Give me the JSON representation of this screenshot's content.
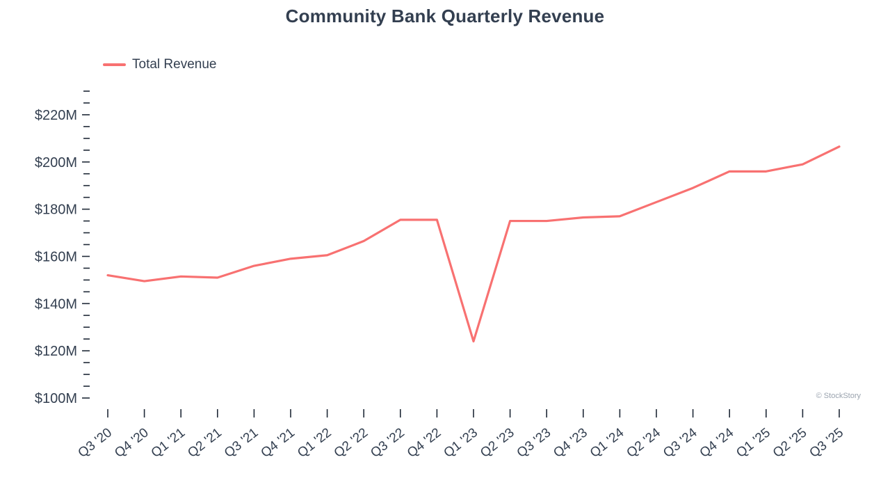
{
  "title": "Community Bank Quarterly Revenue",
  "legend": {
    "label": "Total Revenue"
  },
  "watermark": "© StockStory",
  "colors": {
    "line": "#F87171",
    "text": "#333F50",
    "tick": "#1F2937",
    "muted": "#9AA3AE"
  },
  "chart_data": {
    "type": "line",
    "title": "Community Bank Quarterly Revenue",
    "legend_position": "top-left",
    "grid": false,
    "categories": [
      "Q3 '20",
      "Q4 '20",
      "Q1 '21",
      "Q2 '21",
      "Q3 '21",
      "Q4 '21",
      "Q1 '22",
      "Q2 '22",
      "Q3 '22",
      "Q4 '22",
      "Q1 '23",
      "Q2 '23",
      "Q3 '23",
      "Q4 '23",
      "Q1 '24",
      "Q2 '24",
      "Q3 '24",
      "Q4 '24",
      "Q1 '25",
      "Q2 '25",
      "Q3 '25"
    ],
    "series": [
      {
        "name": "Total Revenue",
        "values": [
          152,
          149.5,
          151.5,
          151,
          156,
          159,
          160.5,
          166.5,
          175.5,
          175.5,
          124,
          175,
          175,
          176.5,
          177,
          183,
          189,
          196,
          196,
          199,
          206.5
        ]
      }
    ],
    "y_unit": "$M",
    "ylim": [
      100,
      230
    ],
    "y_label_step": 20,
    "y_minor_step": 5,
    "y_tick_labels": [
      "$100M",
      "$120M",
      "$140M",
      "$160M",
      "$180M",
      "$200M",
      "$220M"
    ]
  }
}
